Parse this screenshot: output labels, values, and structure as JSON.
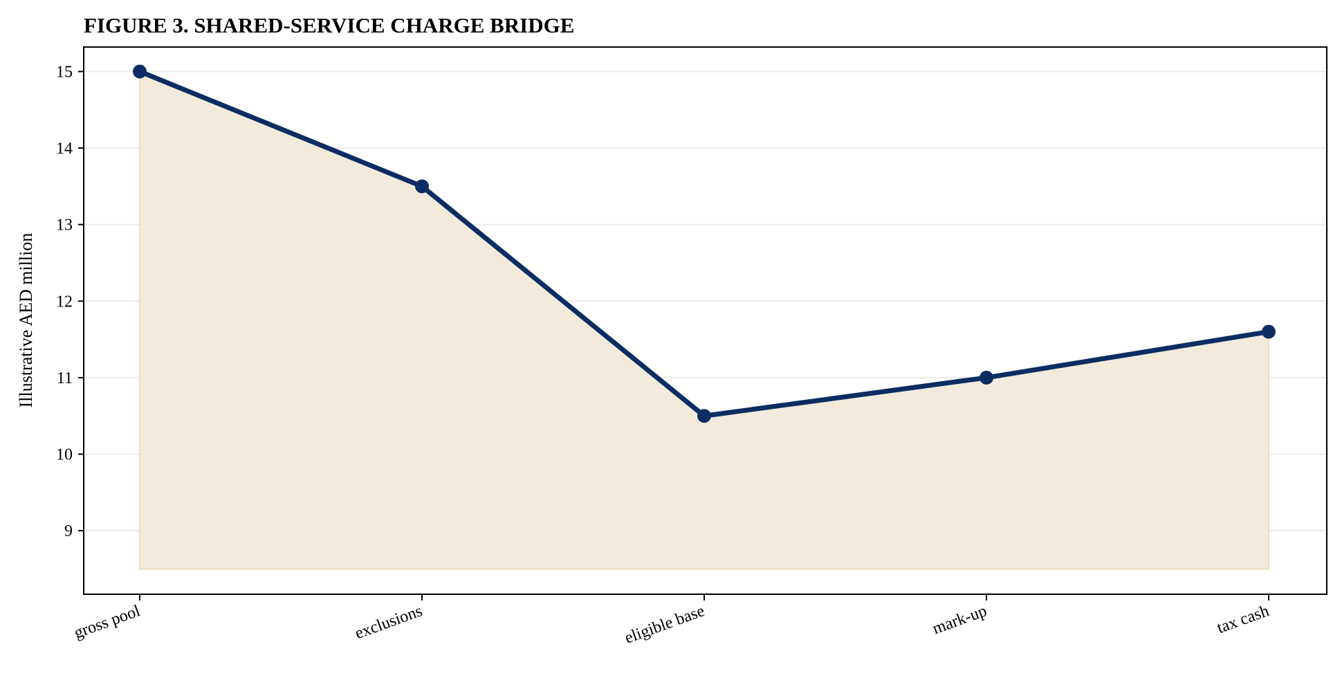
{
  "chart_data": {
    "type": "area",
    "title": "FIGURE 3. SHARED-SERVICE CHARGE BRIDGE",
    "xlabel": "",
    "ylabel": "Illustrative AED million",
    "categories": [
      "gross pool",
      "exclusions",
      "eligible base",
      "mark-up",
      "tax cash"
    ],
    "series": [
      {
        "values": [
          15.0,
          13.5,
          10.5,
          11.0,
          11.6
        ]
      }
    ],
    "ylim": [
      8.17,
      15.32
    ],
    "yticks": [
      9,
      10,
      11,
      12,
      13,
      14,
      15
    ],
    "fill_baseline": 8.5,
    "grid": "horizontal",
    "legend": "none",
    "colors": {
      "line": "#0b2d63",
      "fill": "#f2ebdc",
      "fill_edge": "#e9ddbf",
      "grid": "#ebebeb",
      "axis": "#000000"
    }
  }
}
